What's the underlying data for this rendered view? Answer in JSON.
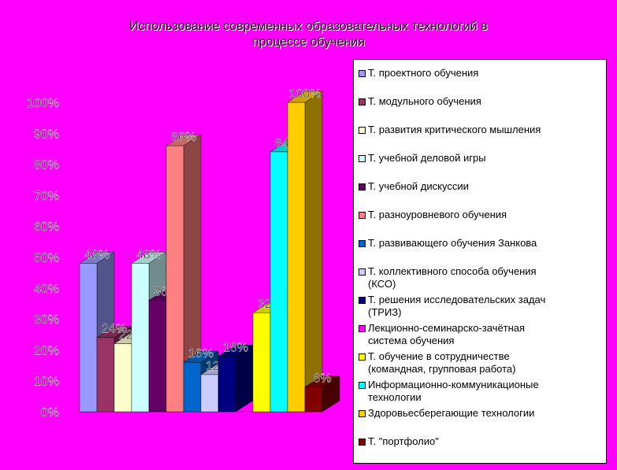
{
  "chart_data": {
    "type": "bar",
    "title": "Использование современных образовательных технологий в процессе обучения",
    "title_lines": [
      "Использование современных образовательных технологий в",
      "процессе обучения"
    ],
    "ylim": [
      0,
      100
    ],
    "yticks": [
      "0%",
      "10%",
      "20%",
      "30%",
      "40%",
      "50%",
      "60%",
      "70%",
      "80%",
      "90%",
      "100%"
    ],
    "legend_position": "right",
    "grid": false,
    "series": [
      {
        "name": "Т. проектного обучения",
        "values": [
          48
        ],
        "label": "48%",
        "color": "#9999ff"
      },
      {
        "name": "Т. модульного обучения",
        "values": [
          24
        ],
        "label": "24%",
        "color": "#993366"
      },
      {
        "name": "Т. развития критического мышления",
        "values": [
          22
        ],
        "label": "22%",
        "color": "#ffffcc"
      },
      {
        "name": "Т. учебной деловой игры",
        "values": [
          48
        ],
        "label": "48%",
        "color": "#ccffff"
      },
      {
        "name": "Т. учебной дискуссии",
        "values": [
          36
        ],
        "label": "36%",
        "color": "#660066"
      },
      {
        "name": "Т. разноуровневого обучения",
        "values": [
          86
        ],
        "label": "86%",
        "color": "#ff8080"
      },
      {
        "name": "Т. развивающего обучения Занкова",
        "values": [
          16
        ],
        "label": "16%",
        "color": "#0066cc"
      },
      {
        "name": "Т. коллективного способа обучения (КСО)",
        "values": [
          12
        ],
        "label": "12%",
        "color": "#ccccff"
      },
      {
        "name": "Т. решения исследовательских задач (ТРИЗ)",
        "values": [
          18
        ],
        "label": "18%",
        "color": "#000080"
      },
      {
        "name": "Лекционно-семинарско-зачётная система обучения",
        "values": [
          0
        ],
        "label": "",
        "color": "#ff00ff"
      },
      {
        "name": "Т. обучение в сотрудничестве (командная, групповая работа)",
        "values": [
          32
        ],
        "label": "32%",
        "color": "#ffff00"
      },
      {
        "name": "Информационно-коммуникационые технологии",
        "values": [
          84
        ],
        "label": "84%",
        "color": "#00ffff"
      },
      {
        "name": "Здоровьесберегающие технологии",
        "values": [
          100
        ],
        "label": "100%",
        "color": "#ffcc00"
      },
      {
        "name": "Т. \"портфолио\"",
        "values": [
          8
        ],
        "label": "8%",
        "color": "#800000"
      }
    ]
  },
  "legend": {
    "items": [
      {
        "lines": [
          "Т. проектного обучения"
        ]
      },
      {
        "lines": [
          "Т. модульного обучения"
        ]
      },
      {
        "lines": [
          "Т. развития критического мышления"
        ]
      },
      {
        "lines": [
          "Т. учебной деловой игры"
        ]
      },
      {
        "lines": [
          "Т. учебной дискуссии"
        ]
      },
      {
        "lines": [
          "Т. разноуровневого обучения"
        ]
      },
      {
        "lines": [
          "Т. развивающего обучения Занкова"
        ]
      },
      {
        "lines": [
          "Т. коллективного способа обучения",
          "(КСО)"
        ]
      },
      {
        "lines": [
          "Т. решения исследовательских задач",
          "(ТРИЗ)"
        ]
      },
      {
        "lines": [
          "Лекционно-семинарско-зачётная",
          "система обучения"
        ]
      },
      {
        "lines": [
          "Т. обучение в сотрудничестве",
          "(командная, групповая работа)"
        ]
      },
      {
        "lines": [
          "Информационно-коммуникационые",
          "технологии"
        ]
      },
      {
        "lines": [
          "Здоровьесберегающие технологии"
        ]
      },
      {
        "lines": [
          "Т. \"портфолио\""
        ]
      }
    ]
  }
}
